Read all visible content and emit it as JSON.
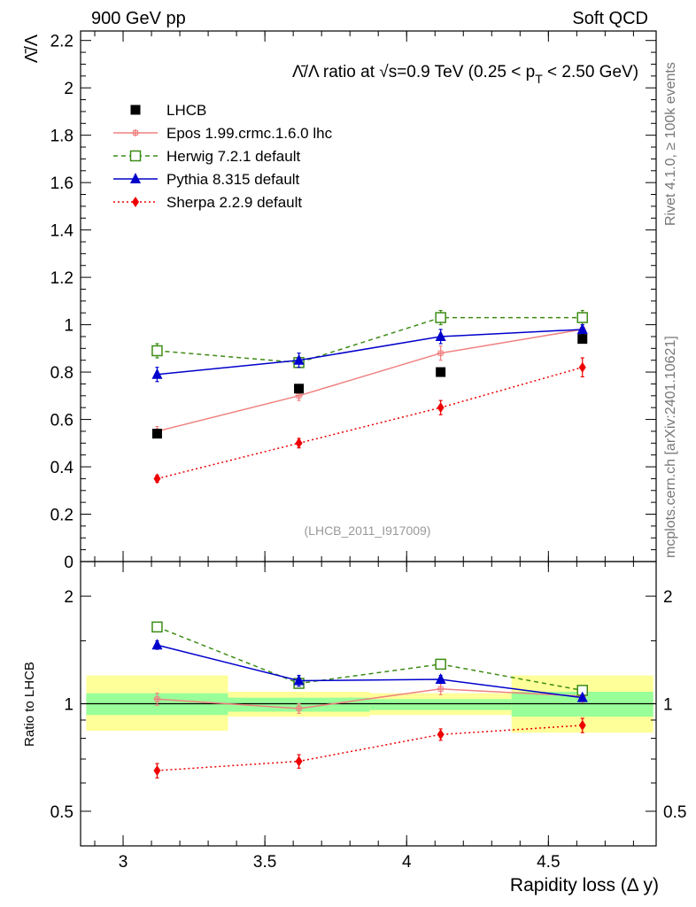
{
  "header": {
    "left": "900 GeV pp",
    "right": "Soft QCD"
  },
  "side_labels": {
    "top": "Rivet 4.1.0, ≥ 100k events",
    "bottom": "mcplots.cern.ch [arXiv:2401.10621]"
  },
  "chart_data": [
    {
      "type": "line",
      "panel": "main",
      "title_parts": {
        "ratio": "Λ̄/Λ ratio at ",
        "sqrt": "√s",
        "energy": "=0.9 TeV (0.25 < p",
        "sub": "T",
        "tail": " < 2.50 GeV)"
      },
      "ylabel": "Λ̄/Λ",
      "watermark": "(LHCB_2011_I917009)",
      "xlim": [
        2.85,
        4.88
      ],
      "ylim": [
        0,
        2.24
      ],
      "yticks": [
        "0",
        "0.2",
        "0.4",
        "0.6",
        "0.8",
        "1",
        "1.2",
        "1.4",
        "1.6",
        "1.8",
        "2",
        "2.2"
      ],
      "x": [
        3.12,
        3.62,
        4.12,
        4.62
      ],
      "bin_edges": [
        2.87,
        3.37,
        3.87,
        4.37,
        4.87
      ],
      "series": [
        {
          "name": "LHCB",
          "style": "data",
          "color": "#000000",
          "marker": "square-filled",
          "values": [
            0.54,
            0.73,
            0.8,
            0.94
          ]
        },
        {
          "name": "Epos 1.99.crmc.1.6.0 lhc",
          "style": "solid",
          "color": "#f08080",
          "marker": "plus-open",
          "values": [
            0.55,
            0.7,
            0.88,
            0.98
          ],
          "errors": [
            0.02,
            0.02,
            0.03,
            0.03
          ]
        },
        {
          "name": "Herwig 7.2.1 default",
          "style": "dashed",
          "color": "#3c8c14",
          "marker": "square-open",
          "values": [
            0.89,
            0.84,
            1.03,
            1.03
          ],
          "errors": [
            0.03,
            0.02,
            0.03,
            0.03
          ]
        },
        {
          "name": "Pythia 8.315 default",
          "style": "solid",
          "color": "#0000cc",
          "marker": "triangle-filled",
          "values": [
            0.79,
            0.85,
            0.95,
            0.98
          ],
          "errors": [
            0.03,
            0.03,
            0.03,
            0.02
          ]
        },
        {
          "name": "Sherpa 2.2.9 default",
          "style": "dotted",
          "color": "#ee0000",
          "marker": "diamond-filled",
          "values": [
            0.35,
            0.5,
            0.65,
            0.82
          ],
          "errors": [
            0.015,
            0.02,
            0.03,
            0.04
          ]
        }
      ]
    },
    {
      "type": "line",
      "panel": "ratio",
      "ylabel": "Ratio to LHCB",
      "xlabel": "Rapidity loss (Δ y)",
      "scale": "log",
      "ylim": [
        0.4,
        2.5
      ],
      "yticks": [
        "0.5",
        "1",
        "2"
      ],
      "xticks": [
        "3",
        "3.5",
        "4",
        "4.5"
      ],
      "reference": 1,
      "bands": {
        "inner_color": "#99ff99",
        "outer_color": "#ffff99",
        "inner": [
          [
            0.93,
            1.07
          ],
          [
            0.95,
            1.04
          ],
          [
            0.96,
            1.03
          ],
          [
            0.92,
            1.08
          ]
        ],
        "outer": [
          [
            0.84,
            1.2
          ],
          [
            0.92,
            1.08
          ],
          [
            0.93,
            1.07
          ],
          [
            0.83,
            1.2
          ]
        ]
      },
      "series": [
        {
          "name": "Epos 1.99.crmc.1.6.0 lhc",
          "values": [
            1.03,
            0.97,
            1.1,
            1.05
          ],
          "errors": [
            0.04,
            0.03,
            0.04,
            0.04
          ]
        },
        {
          "name": "Herwig 7.2.1 default",
          "values": [
            1.64,
            1.14,
            1.29,
            1.09
          ],
          "errors": [
            0.05,
            0.03,
            0.04,
            0.03
          ]
        },
        {
          "name": "Pythia 8.315 default",
          "values": [
            1.46,
            1.16,
            1.17,
            1.04
          ],
          "errors": [
            0.04,
            0.04,
            0.03,
            0.02
          ]
        },
        {
          "name": "Sherpa 2.2.9 default",
          "values": [
            0.65,
            0.69,
            0.82,
            0.87
          ],
          "errors": [
            0.03,
            0.03,
            0.03,
            0.04
          ]
        }
      ]
    }
  ]
}
